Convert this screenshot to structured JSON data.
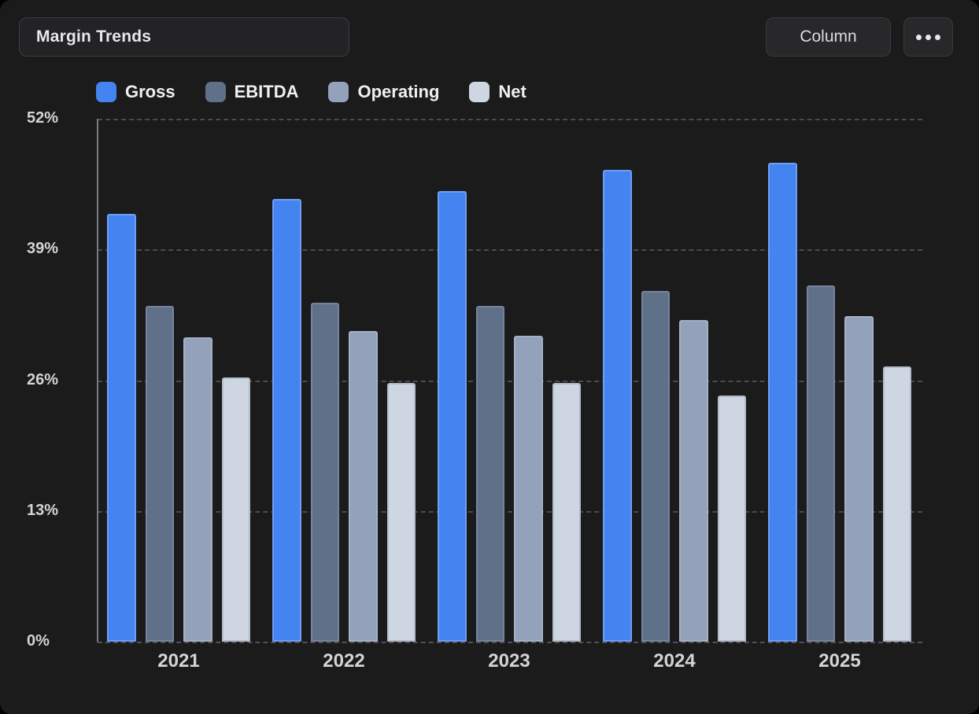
{
  "toolbar": {
    "title_value": "Margin Trends",
    "chart_type_label": "Column",
    "more_icon": "ellipsis-icon"
  },
  "colors": {
    "panel_bg": "#1b1b1c",
    "grid": "#4b4b4d",
    "axis": "#7c7c7e",
    "text": "#d4d4d6"
  },
  "chart_data": {
    "type": "bar",
    "title": "Margin Trends",
    "categories": [
      "2021",
      "2022",
      "2023",
      "2024",
      "2025"
    ],
    "series": [
      {
        "name": "Gross",
        "color": "#4484f0",
        "border": "#6f9df4",
        "values": [
          42.5,
          44.0,
          44.8,
          46.9,
          47.6
        ]
      },
      {
        "name": "EBITDA",
        "color": "#5f7089",
        "border": "#76849b",
        "values": [
          33.4,
          33.7,
          33.4,
          34.9,
          35.4
        ]
      },
      {
        "name": "Operating",
        "color": "#93a2ba",
        "border": "#a4b1c5",
        "values": [
          30.3,
          30.9,
          30.4,
          32.0,
          32.4
        ]
      },
      {
        "name": "Net",
        "color": "#ced6e1",
        "border": "#b2bdca",
        "values": [
          26.3,
          25.7,
          25.7,
          24.5,
          27.4
        ]
      }
    ],
    "xlabel": "",
    "ylabel": "",
    "ylim": [
      0,
      52
    ],
    "y_ticks": [
      {
        "label": "52%",
        "value": 52
      },
      {
        "label": "39%",
        "value": 39
      },
      {
        "label": "26%",
        "value": 26
      },
      {
        "label": "13%",
        "value": 13
      },
      {
        "label": "0%",
        "value": 0
      }
    ],
    "grid": "horizontal-dashed",
    "legend_position": "top-left"
  }
}
